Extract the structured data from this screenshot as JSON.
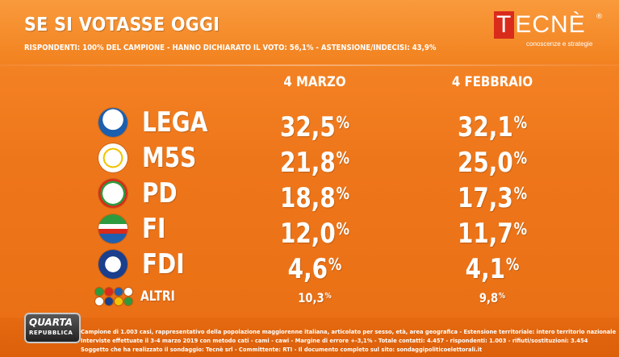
{
  "header": {
    "title": "SE SI VOTASSE OGGI",
    "subtitle": "RISPONDENTI: 100% DEL CAMPIONE - HANNO DICHIARATO IL VOTO: 56,1% - ASTENSIONE/INDECISI: 43,9%"
  },
  "brand": {
    "logo_letter": "T",
    "logo_rest": "ECNÈ",
    "registered": "®",
    "tagline": "conoscenze e strategie",
    "color": "#d92b1b"
  },
  "columns": [
    "4 MARZO",
    "4 FEBBRAIO"
  ],
  "rows": [
    {
      "party": "LEGA",
      "a": "32,5",
      "b": "32,1",
      "logo": "lega-logo-icon",
      "logo_color": "#1b5fae"
    },
    {
      "party": "M5S",
      "a": "21,8",
      "b": "25,0",
      "logo": "m5s-logo-icon",
      "logo_color": "#f2c300"
    },
    {
      "party": "PD",
      "a": "18,8",
      "b": "17,3",
      "logo": "pd-logo-icon",
      "logo_color": "#2e9a3e"
    },
    {
      "party": "FI",
      "a": "12,0",
      "b": "11,7",
      "logo": "fi-logo-icon",
      "logo_color": "#1f5fb0"
    },
    {
      "party": "FDI",
      "a": "4,6",
      "b": "4,1",
      "logo": "fdi-logo-icon",
      "logo_color": "#1b3f8c"
    },
    {
      "party": "ALTRI",
      "a": "10,3",
      "b": "9,8",
      "logo": "altri-logos-icon",
      "logo_color": "#ffffff"
    }
  ],
  "percent_sign": "%",
  "chart_data": {
    "type": "table",
    "title": "SE SI VOTASSE OGGI",
    "columns": [
      "4 MARZO",
      "4 FEBBRAIO"
    ],
    "categories": [
      "LEGA",
      "M5S",
      "PD",
      "FI",
      "FDI",
      "ALTRI"
    ],
    "series": [
      {
        "name": "4 MARZO",
        "values": [
          32.5,
          21.8,
          18.8,
          12.0,
          4.6,
          10.3
        ]
      },
      {
        "name": "4 FEBBRAIO",
        "values": [
          32.1,
          25.0,
          17.3,
          11.7,
          4.1,
          9.8
        ]
      }
    ],
    "unit": "%"
  },
  "footer": {
    "badge_line1": "QUARTA",
    "badge_line2": "REPUBBLICA",
    "line1": "Campione di 1.003 casi, rappresentativo della popolazione maggiorenne italiana, articolato per sesso, età, area geografica - Estensione territoriale: intero territorio nazionale",
    "line2": "Interviste effettuate il 3-4 marzo 2019 con metodo cati - cami - cawi - Margine di errore +-3,1% - Totale contatti: 4.457 - rispondenti: 1.003 - rifiuti/sostituzioni: 3.454",
    "line3": "Soggetto che ha realizzato il sondaggio: Tecnè srl - Committente: RTI - Il documento completo sul sito: sondaggipoliticoelettorali.it"
  },
  "colors": {
    "background": "#ee761a",
    "header": "#f2821f",
    "text": "#ffffff"
  }
}
